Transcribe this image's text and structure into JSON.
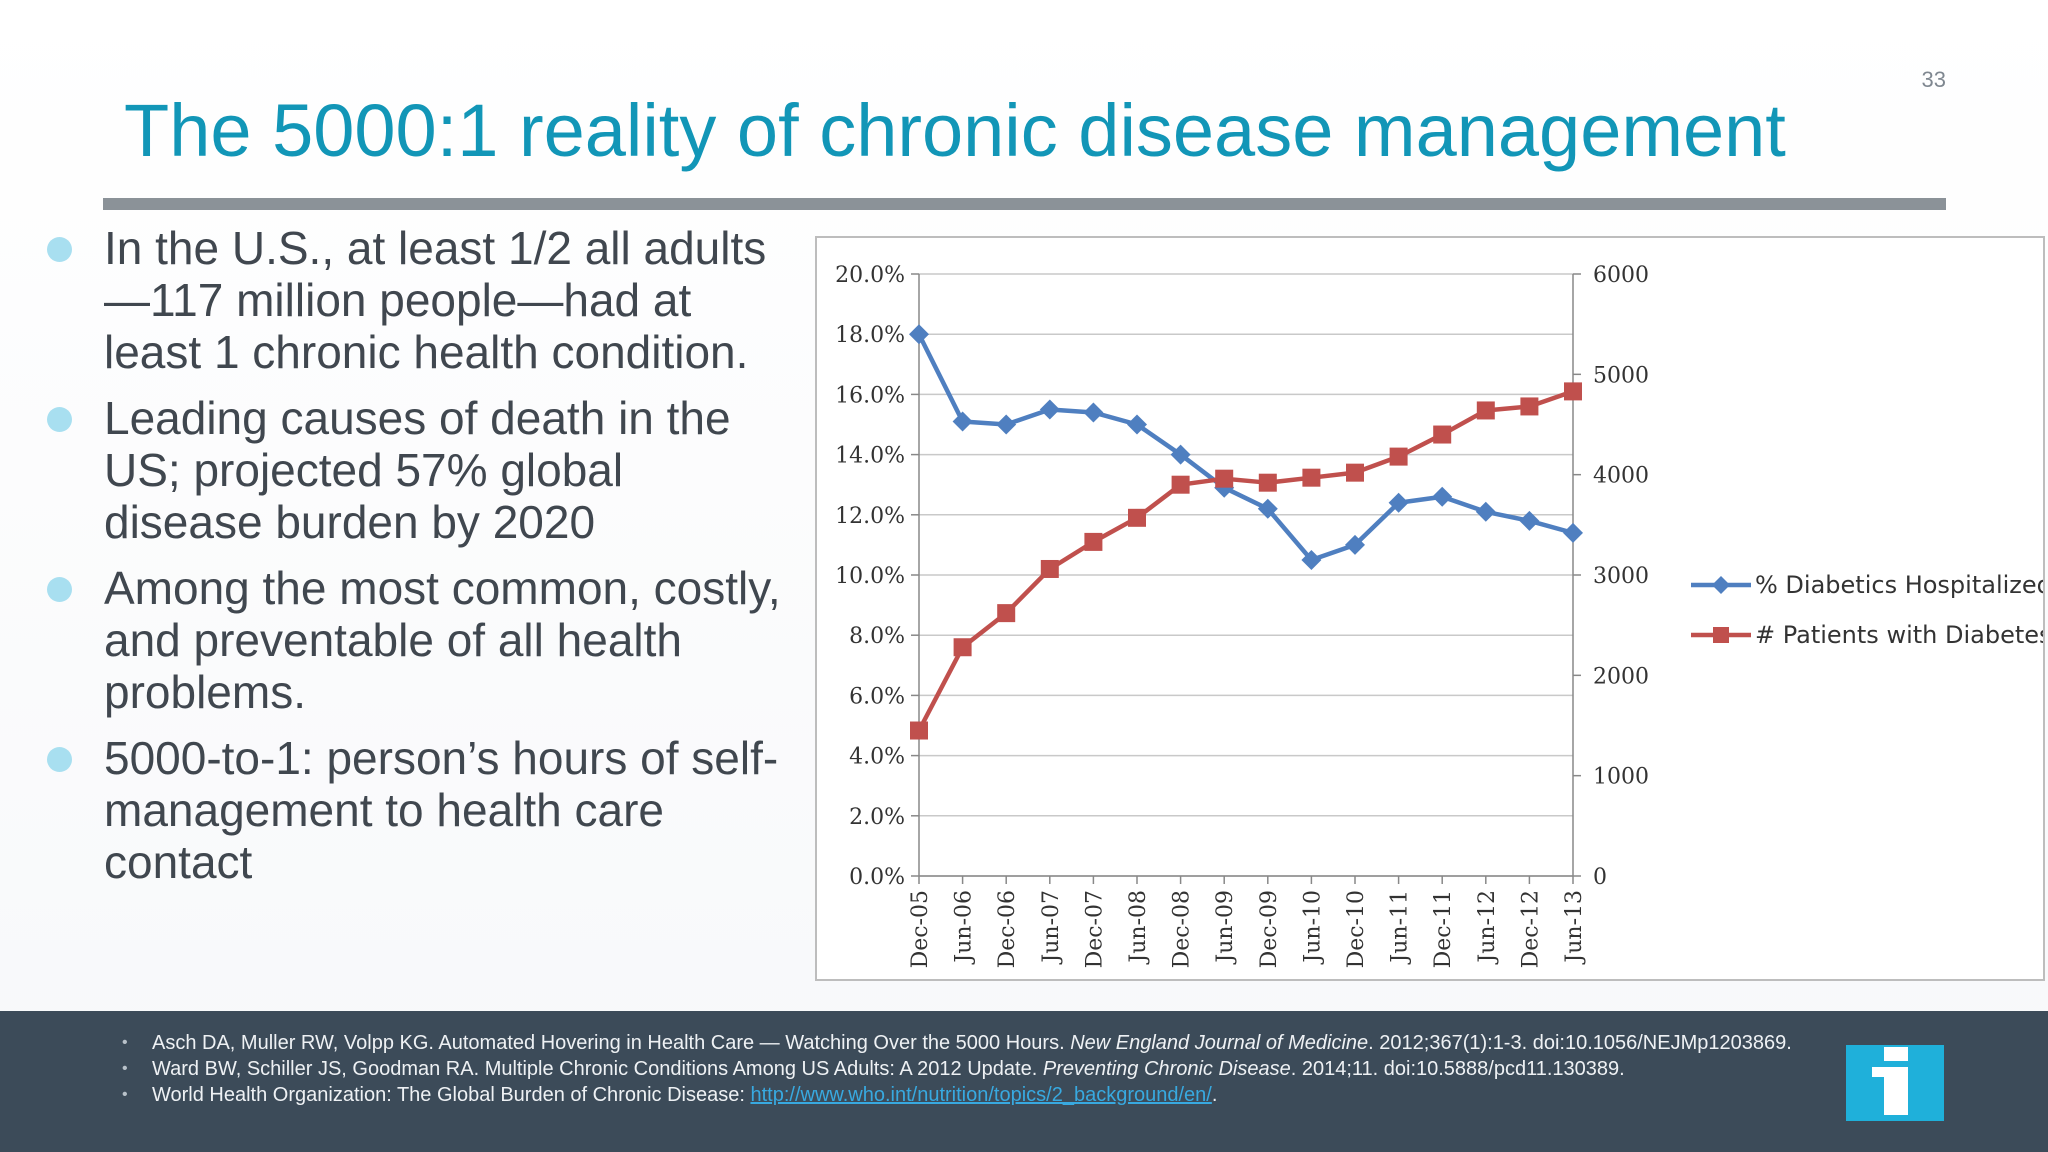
{
  "page_number": "33",
  "title": "The 5000:1 reality of chronic disease management",
  "bullets": [
    "In the U.S., at least 1/2 all adults—117 million people—had at least 1 chronic health condition.",
    "Leading causes of death in the US; projected 57% global disease burden by 2020",
    "Among the most common, costly, and preventable of all health problems.",
    "5000-to-1: person’s hours of self-management to health care contact"
  ],
  "chart_data": {
    "type": "line",
    "categories": [
      "Dec-05",
      "Jun-06",
      "Dec-06",
      "Jun-07",
      "Dec-07",
      "Jun-08",
      "Dec-08",
      "Jun-09",
      "Dec-09",
      "Jun-10",
      "Dec-10",
      "Jun-11",
      "Dec-11",
      "Jun-12",
      "Dec-12",
      "Jun-13"
    ],
    "y_left": {
      "min": 0,
      "max": 20,
      "step": 2,
      "ticks": [
        "0.0%",
        "2.0%",
        "4.0%",
        "6.0%",
        "8.0%",
        "10.0%",
        "12.0%",
        "14.0%",
        "16.0%",
        "18.0%",
        "20.0%"
      ]
    },
    "y_right": {
      "min": 0,
      "max": 6000,
      "step": 1000,
      "ticks": [
        "0",
        "1000",
        "2000",
        "3000",
        "4000",
        "5000",
        "6000"
      ]
    },
    "grid": true,
    "legend_position": "right",
    "series": [
      {
        "name": "% Diabetics Hospitalized",
        "axis": "left",
        "color": "#4f7fc0",
        "marker": "diamond",
        "values": [
          18.0,
          15.1,
          15.0,
          15.5,
          15.4,
          15.0,
          14.0,
          12.9,
          12.2,
          10.5,
          11.0,
          12.4,
          12.6,
          12.1,
          11.8,
          11.4
        ]
      },
      {
        "name": "# Patients with Diabetes",
        "axis": "right",
        "color": "#c0504d",
        "marker": "square",
        "values": [
          1450,
          2280,
          2620,
          3060,
          3330,
          3570,
          3900,
          3960,
          3920,
          3970,
          4020,
          4180,
          4400,
          4640,
          4680,
          4830
        ]
      }
    ]
  },
  "references": [
    {
      "pre": "Asch DA, Muller RW, Volpp KG. Automated Hovering in Health Care — Watching Over the 5000 Hours. ",
      "em": "New England Journal of Medicine",
      "post": ". 2012;367(1):1-3. doi:10.1056/NEJMp1203869."
    },
    {
      "pre": "Ward BW, Schiller JS, Goodman RA. Multiple Chronic Conditions Among US Adults: A 2012 Update. ",
      "em": "Preventing Chronic Disease",
      "post": ". 2014;11. doi:10.5888/pcd11.130389."
    },
    {
      "pre": "World Health Organization: The Global Burden of Chronic Disease: ",
      "link": "http://www.who.int/nutrition/topics/2_background/en/",
      "post": "."
    }
  ],
  "colors": {
    "title": "#1296b7",
    "footer_bg": "#3c4b59",
    "bullet": "#a8dff0",
    "logo": "#1fb0da"
  },
  "logo_icon": "info-i-icon"
}
